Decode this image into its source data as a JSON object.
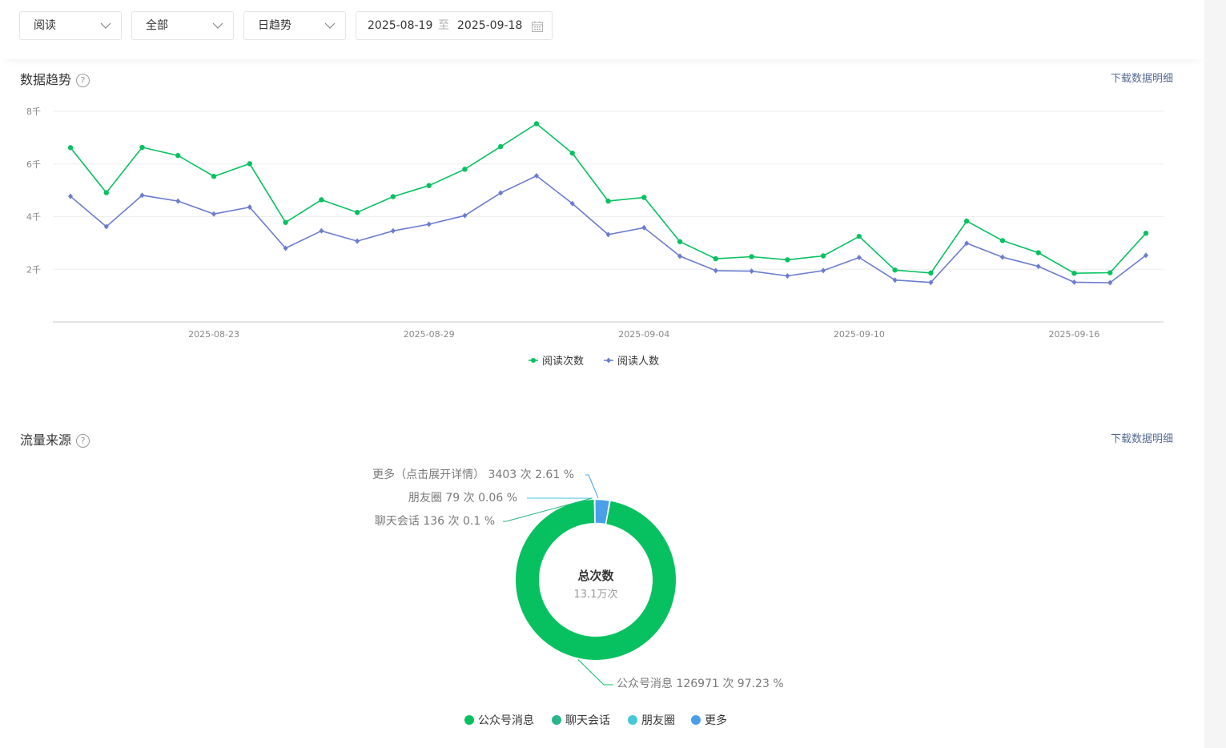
{
  "filters": {
    "metric": "阅读",
    "scope": "全部",
    "granularity": "日趋势",
    "date_start": "2025-08-19",
    "date_sep": "至",
    "date_end": "2025-09-18"
  },
  "trend": {
    "title": "数据趋势",
    "help": "?",
    "download": "下载数据明细"
  },
  "traffic": {
    "title": "流量来源",
    "help": "?",
    "download": "下载数据明细",
    "center_title": "总次数",
    "center_value": "13.1万次"
  },
  "chart_data": [
    {
      "type": "line",
      "x": [
        "2025-08-19",
        "2025-08-20",
        "2025-08-21",
        "2025-08-22",
        "2025-08-23",
        "2025-08-24",
        "2025-08-25",
        "2025-08-26",
        "2025-08-27",
        "2025-08-28",
        "2025-08-29",
        "2025-08-30",
        "2025-08-31",
        "2025-09-01",
        "2025-09-02",
        "2025-09-03",
        "2025-09-04",
        "2025-09-05",
        "2025-09-06",
        "2025-09-07",
        "2025-09-08",
        "2025-09-09",
        "2025-09-10",
        "2025-09-11",
        "2025-09-12",
        "2025-09-13",
        "2025-09-14",
        "2025-09-15",
        "2025-09-16",
        "2025-09-17",
        "2025-09-18"
      ],
      "x_ticks": [
        "2025-08-23",
        "2025-08-29",
        "2025-09-04",
        "2025-09-10",
        "2025-09-16"
      ],
      "y_ticks": [
        "2千",
        "4千",
        "6千",
        "8千"
      ],
      "ylim": [
        0,
        8000
      ],
      "grid": true,
      "legend": "bottom-center",
      "series": [
        {
          "name": "阅读次数",
          "color": "#07c160",
          "marker": "circle",
          "values": [
            6620,
            4910,
            6630,
            6320,
            5530,
            6010,
            3780,
            4640,
            4160,
            4760,
            5180,
            5800,
            6660,
            7530,
            6410,
            4590,
            4730,
            3050,
            2400,
            2480,
            2360,
            2510,
            3250,
            1970,
            1860,
            3830,
            3090,
            2630,
            1850,
            1870,
            3370
          ]
        },
        {
          "name": "阅读人数",
          "color": "#6b7ccf",
          "marker": "diamond",
          "values": [
            4770,
            3620,
            4810,
            4590,
            4100,
            4360,
            2800,
            3460,
            3070,
            3460,
            3710,
            4040,
            4900,
            5550,
            4500,
            3320,
            3580,
            2500,
            1950,
            1930,
            1750,
            1950,
            2450,
            1590,
            1500,
            2990,
            2460,
            2110,
            1510,
            1490,
            2530
          ]
        }
      ]
    },
    {
      "type": "pie",
      "donut": true,
      "center_label": "总次数",
      "center_value": "13.1万次",
      "legend": "bottom-center",
      "slices": [
        {
          "name": "公众号消息",
          "count": 126971,
          "percent": 97.23,
          "color": "#07c160",
          "label": "公众号消息 126971 次 97.23 %"
        },
        {
          "name": "聊天会话",
          "count": 136,
          "percent": 0.1,
          "color": "#2bb58a",
          "label": "聊天会话 136 次 0.1 %"
        },
        {
          "name": "朋友圈",
          "count": 79,
          "percent": 0.06,
          "color": "#47c8d8",
          "label": "朋友圈 79 次 0.06 %"
        },
        {
          "name": "更多",
          "count": 3403,
          "percent": 2.61,
          "color": "#4a9fe8",
          "label": "更多（点击展开详情） 3403 次 2.61 %"
        }
      ]
    }
  ]
}
